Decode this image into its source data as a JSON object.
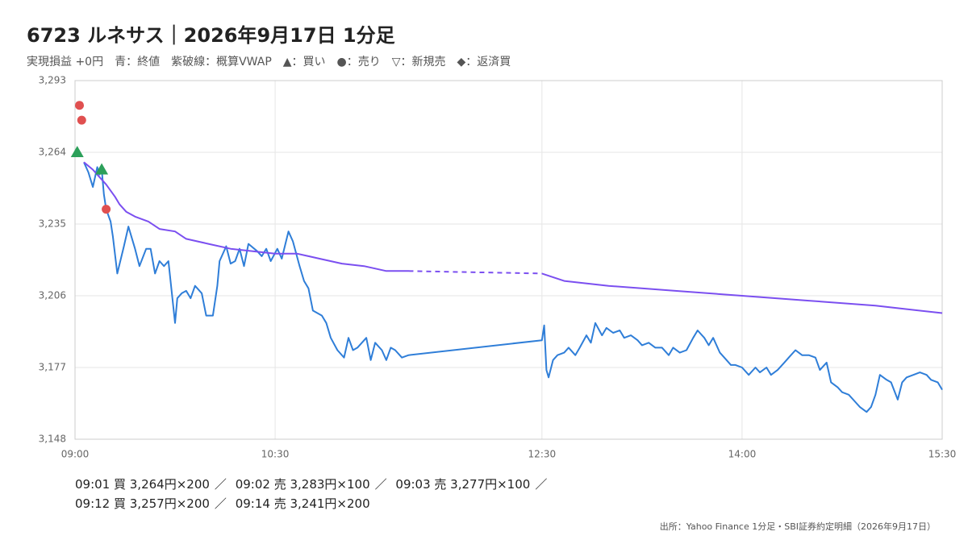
{
  "chart_data": {
    "type": "line",
    "title": "6723 ルネサス｜2026年9月17日 1分足",
    "subtitle": "実現損益 +0円　青：終値　紫破線：概算VWAP　▲：買い　●：売り　▽：新規売　◆：返済買",
    "source": "出所：Yahoo Finance 1分足・SBI証券約定明細（2026年9月17日）",
    "xlim": [
      "09:00",
      "15:30"
    ],
    "xticks": [
      "09:00",
      "10:30",
      "12:30",
      "14:00",
      "15:30"
    ],
    "ylim": [
      3148,
      3293
    ],
    "yticks": [
      {
        "value": 3148,
        "label": "3,148"
      },
      {
        "value": 3177,
        "label": "3,177"
      },
      {
        "value": 3206,
        "label": "3,206"
      },
      {
        "value": 3235,
        "label": "3,235"
      },
      {
        "value": 3264,
        "label": "3,264"
      },
      {
        "value": 3293,
        "label": "3,293"
      }
    ],
    "grid": true,
    "series": [
      {
        "color": "#2f7ed8",
        "x": [
          "09:04",
          "09:06",
          "09:08",
          "09:10",
          "09:11",
          "09:12",
          "09:13",
          "09:14",
          "09:16",
          "09:17",
          "09:19",
          "09:22",
          "09:24",
          "09:27",
          "09:29",
          "09:32",
          "09:34",
          "09:36",
          "09:38",
          "09:40",
          "09:42",
          "09:45",
          "09:46",
          "09:48",
          "09:50",
          "09:52",
          "09:54",
          "09:57",
          "09:59",
          "10:02",
          "10:04",
          "10:05",
          "10:08",
          "10:10",
          "10:12",
          "10:14",
          "10:16",
          "10:18",
          "10:22",
          "10:24",
          "10:26",
          "10:28",
          "10:31",
          "10:33",
          "10:36",
          "10:38",
          "10:41",
          "10:43",
          "10:45",
          "10:47",
          "10:51",
          "10:53",
          "10:55",
          "10:58",
          "11:01",
          "11:03",
          "11:05",
          "11:07",
          "11:11",
          "11:13",
          "11:15",
          "11:18",
          "11:20",
          "11:22",
          "11:24",
          "11:27",
          "11:30",
          "12:30",
          "12:31",
          "12:32",
          "12:33",
          "12:35",
          "12:37",
          "12:40",
          "12:42",
          "12:45",
          "12:47",
          "12:50",
          "12:52",
          "12:54",
          "12:57",
          "12:59",
          "13:02",
          "13:05",
          "13:07",
          "13:10",
          "13:13",
          "13:15",
          "13:18",
          "13:21",
          "13:24",
          "13:27",
          "13:29",
          "13:32",
          "13:35",
          "13:38",
          "13:40",
          "13:43",
          "13:45",
          "13:47",
          "13:50",
          "13:52",
          "13:55",
          "13:57",
          "14:00",
          "14:03",
          "14:06",
          "14:08",
          "14:11",
          "14:13",
          "14:16",
          "14:19",
          "14:21",
          "14:24",
          "14:27",
          "14:30",
          "14:33",
          "14:35",
          "14:38",
          "14:40",
          "14:43",
          "14:45",
          "14:48",
          "14:51",
          "14:53",
          "14:56",
          "14:58",
          "15:00",
          "15:02",
          "15:05",
          "15:07",
          "15:10",
          "15:12",
          "15:14",
          "15:17",
          "15:20",
          "15:23",
          "15:25",
          "15:28",
          "15:30"
        ],
        "values": [
          3260,
          3256,
          3250,
          3258,
          3255,
          3257,
          3247,
          3241,
          3236,
          3230,
          3215,
          3226,
          3234,
          3225,
          3218,
          3225,
          3225,
          3215,
          3220,
          3218,
          3220,
          3195,
          3205,
          3207,
          3208,
          3205,
          3210,
          3207,
          3198,
          3198,
          3210,
          3220,
          3226,
          3219,
          3220,
          3225,
          3218,
          3227,
          3224,
          3222,
          3225,
          3220,
          3225,
          3221,
          3232,
          3228,
          3218,
          3212,
          3209,
          3200,
          3198,
          3195,
          3189,
          3184,
          3181,
          3189,
          3184,
          3185,
          3189,
          3180,
          3187,
          3184,
          3180,
          3185,
          3184,
          3181,
          3182,
          3188,
          3194,
          3176,
          3173,
          3180,
          3182,
          3183,
          3185,
          3182,
          3185,
          3190,
          3187,
          3195,
          3190,
          3193,
          3191,
          3192,
          3189,
          3190,
          3188,
          3186,
          3187,
          3185,
          3185,
          3182,
          3185,
          3183,
          3184,
          3189,
          3192,
          3189,
          3186,
          3189,
          3183,
          3181,
          3178,
          3178,
          3177,
          3174,
          3177,
          3175,
          3177,
          3174,
          3176,
          3179,
          3181,
          3184,
          3182,
          3182,
          3181,
          3176,
          3179,
          3171,
          3169,
          3167,
          3166,
          3163,
          3161,
          3159,
          3161,
          3166,
          3174,
          3172,
          3171,
          3164,
          3171,
          3173,
          3174,
          3175,
          3174,
          3172,
          3171,
          3168
        ]
      },
      {
        "color": "#7b4ff0",
        "dash_gap": [
          "11:30",
          "12:30"
        ],
        "x": [
          "09:04",
          "09:08",
          "09:11",
          "09:14",
          "09:18",
          "09:20",
          "09:23",
          "09:27",
          "09:33",
          "09:38",
          "09:45",
          "09:50",
          "10:00",
          "10:10",
          "10:20",
          "10:30",
          "10:40",
          "10:50",
          "11:00",
          "11:10",
          "11:20",
          "11:30",
          "12:30",
          "12:40",
          "13:00",
          "13:30",
          "14:00",
          "14:30",
          "15:00",
          "15:30"
        ],
        "values": [
          3260,
          3257,
          3254,
          3251,
          3246,
          3243,
          3240,
          3238,
          3236,
          3233,
          3232,
          3229,
          3227,
          3225,
          3224,
          3223,
          3223,
          3221,
          3219,
          3218,
          3216,
          3216,
          3215,
          3212,
          3210,
          3208,
          3206,
          3204,
          3202,
          3199
        ]
      }
    ],
    "trades": [
      {
        "time": "09:01",
        "price": 3264,
        "marker": "triangle",
        "color": "#2ca05a",
        "label": "09:01 買 3,264円×200"
      },
      {
        "time": "09:02",
        "price": 3283,
        "marker": "circle",
        "color": "#e05050",
        "label": "09:02 売 3,283円×100"
      },
      {
        "time": "09:03",
        "price": 3277,
        "marker": "circle",
        "color": "#e05050",
        "label": "09:03 売 3,277円×100"
      },
      {
        "time": "09:12",
        "price": 3257,
        "marker": "triangle",
        "color": "#2ca05a",
        "label": "09:12 買 3,257円×200"
      },
      {
        "time": "09:14",
        "price": 3241,
        "marker": "circle",
        "color": "#e05050",
        "label": "09:14 売 3,241円×200"
      }
    ],
    "trade_separator": "／"
  }
}
